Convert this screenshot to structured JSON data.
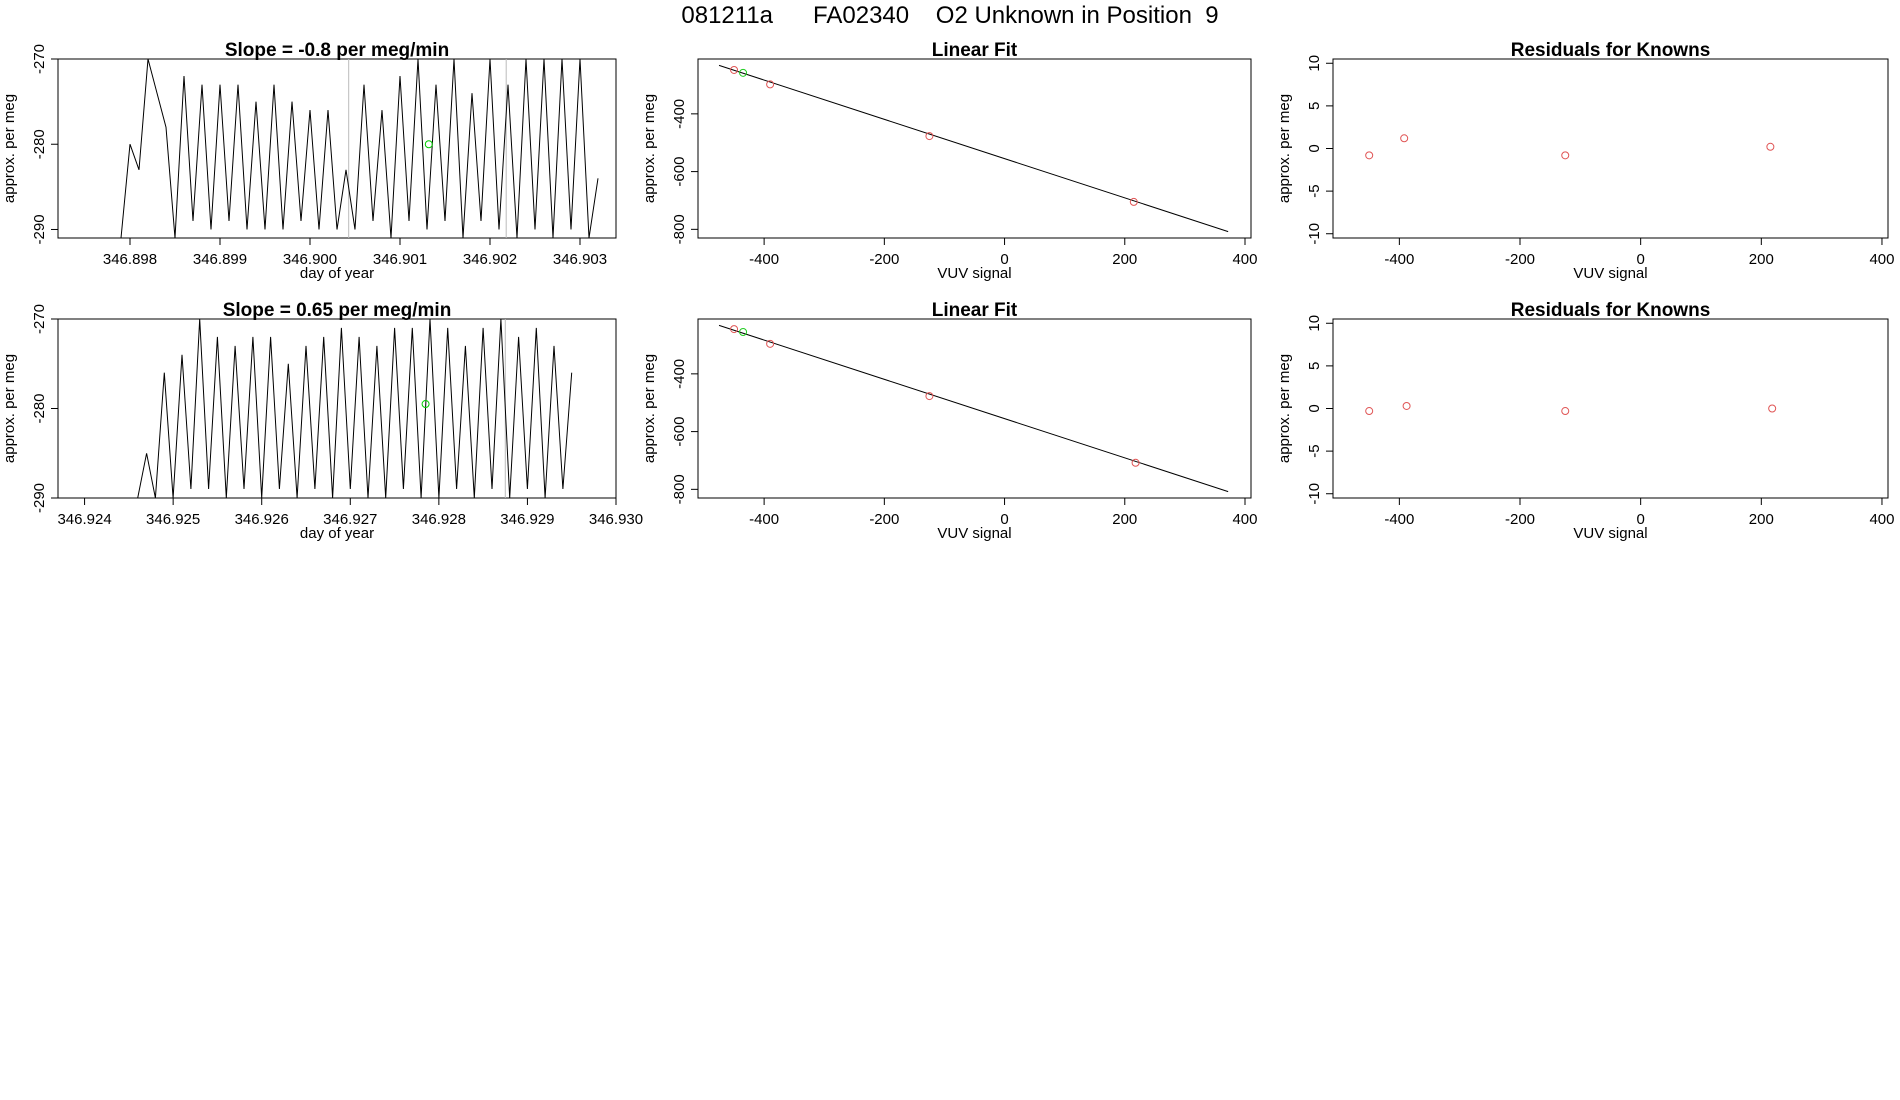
{
  "page_title": "081211a      FA02340    O2 Unknown in Position  9",
  "chart_data": [
    {
      "type": "line",
      "title": "Slope =  -0.8  per meg/min",
      "xlabel": "day of year",
      "ylabel": "approx. per meg",
      "xlim": [
        346.8972,
        346.9034
      ],
      "ylim": [
        -291,
        -270
      ],
      "y_reversed": true,
      "xticks": [
        "346.898",
        "346.899",
        "346.900",
        "346.901",
        "346.902",
        "346.903"
      ],
      "yticks": [
        "-270",
        "-280",
        "-290"
      ],
      "x": [
        346.8979,
        346.898,
        346.8981,
        346.8982,
        346.8983,
        346.8984,
        346.8985,
        346.8986,
        346.8987,
        346.8988,
        346.8989,
        346.899,
        346.8991,
        346.8992,
        346.8993,
        346.8994,
        346.8995,
        346.8996,
        346.8997,
        346.8998,
        346.8999,
        346.9,
        346.9001,
        346.9002,
        346.9003,
        346.9004,
        346.9005,
        346.9006,
        346.9007,
        346.9008,
        346.9009,
        346.901,
        346.9011,
        346.9012,
        346.9013,
        346.9014,
        346.9015,
        346.9016,
        346.9017,
        346.9018,
        346.9019,
        346.902,
        346.9021,
        346.9022,
        346.9023,
        346.9024,
        346.9025,
        346.9026,
        346.9027,
        346.9028,
        346.9029,
        346.903,
        346.9031,
        346.9032
      ],
      "y": [
        -291,
        -280,
        -283,
        -270,
        -274,
        -278,
        -291,
        -272,
        -289,
        -273,
        -290,
        -273,
        -289,
        -273,
        -290,
        -275,
        -290,
        -273,
        -290,
        -275,
        -289,
        -276,
        -290,
        -276,
        -290,
        -283,
        -290,
        -273,
        -289,
        -276,
        -291,
        -272,
        -289,
        -270,
        -290,
        -273,
        -289,
        -270,
        -291,
        -274,
        -289,
        -270,
        -290,
        -273,
        -291,
        -270,
        -290,
        -270,
        -291,
        -270,
        -290,
        -270,
        -291,
        -284
      ],
      "highlight_points": [
        {
          "x": 346.90132,
          "y": -280.0,
          "color": "#00cc00"
        }
      ],
      "vlines": [
        346.90043,
        346.90218
      ]
    },
    {
      "type": "scatter",
      "title": "Linear Fit",
      "xlabel": "VUV signal",
      "ylabel": "approx. per meg",
      "xlim": [
        -510,
        410
      ],
      "ylim": [
        -830,
        -210
      ],
      "y_reversed": false,
      "xticks": [
        "-400",
        "-200",
        "0",
        "200",
        "400"
      ],
      "yticks": [
        "-400",
        "-600",
        "-800"
      ],
      "points": [
        [
          -450,
          -248
        ],
        [
          -390,
          -298
        ],
        [
          -125,
          -477
        ],
        [
          215,
          -705
        ]
      ],
      "green_points": [
        [
          -435,
          -258
        ]
      ],
      "fit_line": [
        [
          -475,
          -232
        ],
        [
          372,
          -808
        ]
      ]
    },
    {
      "type": "scatter",
      "title": "Residuals for Knowns",
      "xlabel": "VUV signal",
      "ylabel": "approx. per meg",
      "xlim": [
        -510,
        410
      ],
      "ylim": [
        -10.5,
        10.5
      ],
      "xticks": [
        "-400",
        "-200",
        "0",
        "200",
        "400"
      ],
      "yticks": [
        "-10",
        "-5",
        "0",
        "5",
        "10"
      ],
      "points": [
        [
          -450,
          -0.8
        ],
        [
          -392,
          1.2
        ],
        [
          -125,
          -0.8
        ],
        [
          215,
          0.2
        ]
      ]
    },
    {
      "type": "line",
      "title": "Slope =  0.65  per meg/min",
      "xlabel": "day of year",
      "ylabel": "approx. per meg",
      "xlim": [
        346.9237,
        346.93
      ],
      "ylim": [
        -290,
        -270
      ],
      "y_reversed": true,
      "xticks": [
        "346.924",
        "346.925",
        "346.926",
        "346.927",
        "346.928",
        "346.929",
        "346.930"
      ],
      "yticks": [
        "-270",
        "-280",
        "-290"
      ],
      "x": [
        346.9246,
        346.9247,
        346.9248,
        346.9249,
        346.925,
        346.9251,
        346.9252,
        346.9253,
        346.9254,
        346.9255,
        346.9256,
        346.9257,
        346.9258,
        346.9259,
        346.926,
        346.9261,
        346.9262,
        346.9263,
        346.9264,
        346.9265,
        346.9266,
        346.9267,
        346.9268,
        346.9269,
        346.927,
        346.9271,
        346.9272,
        346.9273,
        346.9274,
        346.9275,
        346.9276,
        346.9277,
        346.9278,
        346.9279,
        346.928,
        346.9281,
        346.9282,
        346.9283,
        346.9284,
        346.9285,
        346.9286,
        346.9287,
        346.9288,
        346.9289,
        346.929,
        346.9291,
        346.9292,
        346.9293,
        346.9294,
        346.9295
      ],
      "y": [
        -290,
        -285,
        -290,
        -276,
        -290,
        -274,
        -289,
        -270,
        -289,
        -272,
        -290,
        -273,
        -289,
        -272,
        -290,
        -272,
        -289,
        -275,
        -290,
        -273,
        -289,
        -272,
        -290,
        -271,
        -289,
        -272,
        -290,
        -273,
        -290,
        -271,
        -289,
        -271,
        -290,
        -270,
        -290,
        -271,
        -289,
        -273,
        -290,
        -271,
        -289,
        -270,
        -290,
        -272,
        -289,
        -271,
        -290,
        -273,
        -289,
        -276
      ],
      "highlight_points": [
        {
          "x": 346.92785,
          "y": -279.5,
          "color": "#00cc00"
        }
      ],
      "vlines": [
        346.92875
      ]
    },
    {
      "type": "scatter",
      "title": "Linear Fit",
      "xlabel": "VUV signal",
      "ylabel": "approx. per meg",
      "xlim": [
        -510,
        410
      ],
      "ylim": [
        -830,
        -210
      ],
      "y_reversed": false,
      "xticks": [
        "-400",
        "-200",
        "0",
        "200",
        "400"
      ],
      "yticks": [
        "-400",
        "-600",
        "-800"
      ],
      "points": [
        [
          -450,
          -245
        ],
        [
          -390,
          -296
        ],
        [
          -125,
          -477
        ],
        [
          218,
          -708
        ]
      ],
      "green_points": [
        [
          -435,
          -255
        ]
      ],
      "fit_line": [
        [
          -475,
          -232
        ],
        [
          372,
          -808
        ]
      ]
    },
    {
      "type": "scatter",
      "title": "Residuals for Knowns",
      "xlabel": "VUV signal",
      "ylabel": "approx. per meg",
      "xlim": [
        -510,
        410
      ],
      "ylim": [
        -10.5,
        10.5
      ],
      "xticks": [
        "-400",
        "-200",
        "0",
        "200",
        "400"
      ],
      "yticks": [
        "-10",
        "-5",
        "0",
        "5",
        "10"
      ],
      "points": [
        [
          -450,
          -0.3
        ],
        [
          -388,
          0.3
        ],
        [
          -125,
          -0.3
        ],
        [
          218,
          0.0
        ]
      ]
    }
  ]
}
